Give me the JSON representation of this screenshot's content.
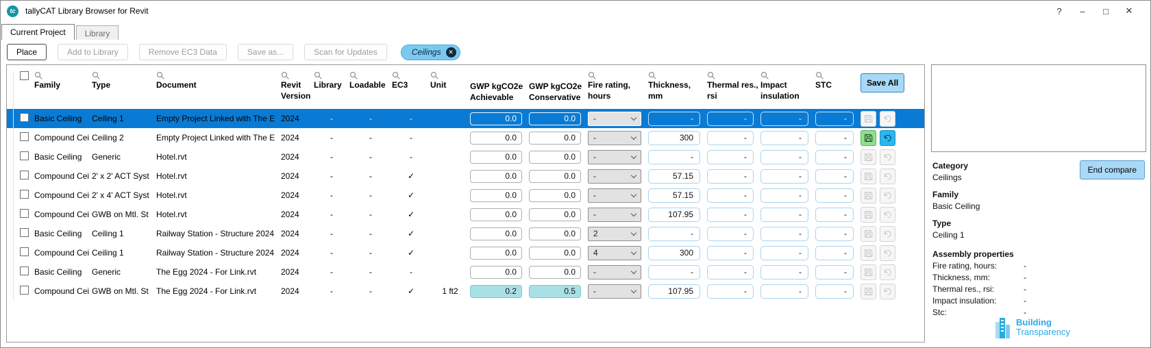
{
  "window": {
    "title": "tallyCAT Library Browser for Revit",
    "logo_text": "tc",
    "controls": [
      {
        "name": "help",
        "glyph": "?"
      },
      {
        "name": "minimize",
        "glyph": "–"
      },
      {
        "name": "maximize",
        "glyph": "□"
      },
      {
        "name": "close",
        "glyph": "✕"
      }
    ]
  },
  "tabs": [
    {
      "label": "Current Project",
      "active": true
    },
    {
      "label": "Library",
      "active": false
    }
  ],
  "toolbar": {
    "buttons": [
      {
        "label": "Place",
        "enabled": true
      },
      {
        "label": "Add to Library",
        "enabled": false
      },
      {
        "label": "Remove EC3 Data",
        "enabled": false
      },
      {
        "label": "Save as...",
        "enabled": false
      },
      {
        "label": "Scan for Updates",
        "enabled": false
      }
    ],
    "filter_chip": {
      "label": "Ceilings",
      "close_glyph": "✕"
    }
  },
  "table": {
    "save_all_label": "Save All",
    "columns": [
      {
        "key": "family",
        "lines": [
          "Family"
        ],
        "search": true
      },
      {
        "key": "type",
        "lines": [
          "Type"
        ],
        "search": true
      },
      {
        "key": "document",
        "lines": [
          "Document"
        ],
        "search": true
      },
      {
        "key": "revit_version",
        "lines": [
          "Revit",
          "Version"
        ],
        "search": true
      },
      {
        "key": "library",
        "lines": [
          "Library"
        ],
        "search": true
      },
      {
        "key": "loadable",
        "lines": [
          "Loadable"
        ],
        "search": true
      },
      {
        "key": "ec3",
        "lines": [
          "EC3"
        ],
        "search": true
      },
      {
        "key": "unit",
        "lines": [
          "Unit"
        ],
        "search": true
      },
      {
        "key": "gwp_achievable",
        "lines": [
          "GWP kgCO2e",
          "Achievable"
        ],
        "search": false
      },
      {
        "key": "gwp_conservative",
        "lines": [
          "GWP kgCO2e",
          "Conservative"
        ],
        "search": false
      },
      {
        "key": "fire_rating",
        "lines": [
          "Fire rating,",
          "hours"
        ],
        "search": true
      },
      {
        "key": "thickness",
        "lines": [
          "Thickness,",
          "mm"
        ],
        "search": true
      },
      {
        "key": "thermal_res",
        "lines": [
          "Thermal res.,",
          "rsi"
        ],
        "search": true
      },
      {
        "key": "impact_insulation",
        "lines": [
          "Impact",
          "insulation"
        ],
        "search": true
      },
      {
        "key": "stc",
        "lines": [
          "STC"
        ],
        "search": true
      }
    ],
    "rows": [
      {
        "selected": true,
        "family": "Basic Ceiling",
        "type": "Ceiling 1",
        "document": "Empty Project Linked with The E",
        "revit_version": "2024",
        "library": "-",
        "loadable": "-",
        "ec3": "-",
        "unit": "",
        "gwp_achievable": "0.0",
        "gwp_conservative": "0.0",
        "gwp_highlight": false,
        "fire_rating": "-",
        "thickness": "-",
        "thermal_res": "-",
        "impact_insulation": "-",
        "stc": "-",
        "save_state": "disabled"
      },
      {
        "selected": false,
        "family": "Compound Cei",
        "type": "Ceiling 2",
        "document": "Empty Project Linked with The E",
        "revit_version": "2024",
        "library": "-",
        "loadable": "-",
        "ec3": "-",
        "unit": "",
        "gwp_achievable": "0.0",
        "gwp_conservative": "0.0",
        "gwp_highlight": false,
        "fire_rating": "-",
        "thickness": "300",
        "thermal_res": "-",
        "impact_insulation": "-",
        "stc": "-",
        "save_state": "active"
      },
      {
        "selected": false,
        "family": "Basic Ceiling",
        "type": "Generic",
        "document": "Hotel.rvt",
        "revit_version": "2024",
        "library": "-",
        "loadable": "-",
        "ec3": "-",
        "unit": "",
        "gwp_achievable": "0.0",
        "gwp_conservative": "0.0",
        "gwp_highlight": false,
        "fire_rating": "-",
        "thickness": "-",
        "thermal_res": "-",
        "impact_insulation": "-",
        "stc": "-",
        "save_state": "disabled"
      },
      {
        "selected": false,
        "family": "Compound Cei",
        "type": "2' x 2' ACT Syst",
        "document": "Hotel.rvt",
        "revit_version": "2024",
        "library": "-",
        "loadable": "-",
        "ec3": "✓",
        "unit": "",
        "gwp_achievable": "0.0",
        "gwp_conservative": "0.0",
        "gwp_highlight": false,
        "fire_rating": "-",
        "thickness": "57.15",
        "thermal_res": "-",
        "impact_insulation": "-",
        "stc": "-",
        "save_state": "disabled"
      },
      {
        "selected": false,
        "family": "Compound Cei",
        "type": "2' x 4' ACT Syst",
        "document": "Hotel.rvt",
        "revit_version": "2024",
        "library": "-",
        "loadable": "-",
        "ec3": "✓",
        "unit": "",
        "gwp_achievable": "0.0",
        "gwp_conservative": "0.0",
        "gwp_highlight": false,
        "fire_rating": "-",
        "thickness": "57.15",
        "thermal_res": "-",
        "impact_insulation": "-",
        "stc": "-",
        "save_state": "disabled"
      },
      {
        "selected": false,
        "family": "Compound Cei",
        "type": "GWB on Mtl. St",
        "document": "Hotel.rvt",
        "revit_version": "2024",
        "library": "-",
        "loadable": "-",
        "ec3": "✓",
        "unit": "",
        "gwp_achievable": "0.0",
        "gwp_conservative": "0.0",
        "gwp_highlight": false,
        "fire_rating": "-",
        "thickness": "107.95",
        "thermal_res": "-",
        "impact_insulation": "-",
        "stc": "-",
        "save_state": "disabled"
      },
      {
        "selected": false,
        "family": "Basic Ceiling",
        "type": "Ceiling 1",
        "document": "Railway Station - Structure 2024",
        "revit_version": "2024",
        "library": "-",
        "loadable": "-",
        "ec3": "✓",
        "unit": "",
        "gwp_achievable": "0.0",
        "gwp_conservative": "0.0",
        "gwp_highlight": false,
        "fire_rating": "2",
        "thickness": "-",
        "thermal_res": "-",
        "impact_insulation": "-",
        "stc": "-",
        "save_state": "disabled"
      },
      {
        "selected": false,
        "family": "Compound Cei",
        "type": "Ceiling 1",
        "document": "Railway Station - Structure 2024",
        "revit_version": "2024",
        "library": "-",
        "loadable": "-",
        "ec3": "✓",
        "unit": "",
        "gwp_achievable": "0.0",
        "gwp_conservative": "0.0",
        "gwp_highlight": false,
        "fire_rating": "4",
        "thickness": "300",
        "thermal_res": "-",
        "impact_insulation": "-",
        "stc": "-",
        "save_state": "disabled"
      },
      {
        "selected": false,
        "family": "Basic Ceiling",
        "type": "Generic",
        "document": "The Egg 2024 - For Link.rvt",
        "revit_version": "2024",
        "library": "-",
        "loadable": "-",
        "ec3": "-",
        "unit": "",
        "gwp_achievable": "0.0",
        "gwp_conservative": "0.0",
        "gwp_highlight": false,
        "fire_rating": "-",
        "thickness": "-",
        "thermal_res": "-",
        "impact_insulation": "-",
        "stc": "-",
        "save_state": "disabled"
      },
      {
        "selected": false,
        "family": "Compound Cei",
        "type": "GWB on Mtl. St",
        "document": "The Egg 2024 - For Link.rvt",
        "revit_version": "2024",
        "library": "-",
        "loadable": "-",
        "ec3": "✓",
        "unit": "1 ft2",
        "gwp_achievable": "0.2",
        "gwp_conservative": "0.5",
        "gwp_highlight": true,
        "fire_rating": "-",
        "thickness": "107.95",
        "thermal_res": "-",
        "impact_insulation": "-",
        "stc": "-",
        "save_state": "disabled"
      }
    ]
  },
  "right_panel": {
    "end_compare_label": "End compare",
    "sections": [
      {
        "label": "Category",
        "value": "Ceilings"
      },
      {
        "label": "Family",
        "value": "Basic Ceiling"
      },
      {
        "label": "Type",
        "value": "Ceiling 1"
      }
    ],
    "assembly": {
      "title": "Assembly properties",
      "props": [
        {
          "label": "Fire rating, hours:",
          "value": "-"
        },
        {
          "label": "Thickness, mm:",
          "value": "-"
        },
        {
          "label": "Thermal res., rsi:",
          "value": "-"
        },
        {
          "label": "Impact insulation:",
          "value": "-"
        },
        {
          "label": "Stc:",
          "value": "-"
        }
      ]
    },
    "logo": {
      "line1": "Building",
      "line2": "Transparency"
    }
  },
  "colors": {
    "selection_blue": "#0a7bd4",
    "chip_blue": "#7cc9f0",
    "gwp_highlight_teal": "#a9e0e6",
    "save_active_green": "#8fde8f",
    "undo_active_cyan": "#2bb7ef",
    "app_logo_teal": "#1795a4",
    "brand_cyan": "#29abe2"
  }
}
